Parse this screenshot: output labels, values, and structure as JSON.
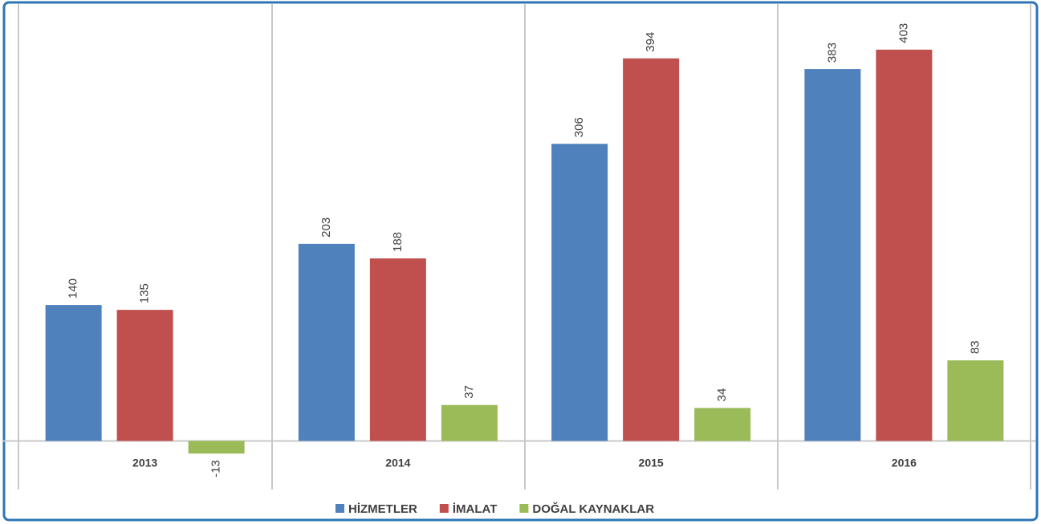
{
  "chart_data": {
    "type": "bar",
    "categories": [
      "2013",
      "2014",
      "2015",
      "2016"
    ],
    "series": [
      {
        "name": "HİZMETLER",
        "color": "#4f81bd",
        "values": [
          140,
          203,
          306,
          383
        ]
      },
      {
        "name": "İMALAT",
        "color": "#c0504d",
        "values": [
          135,
          188,
          394,
          403
        ]
      },
      {
        "name": "DOĞAL KAYNAKLAR",
        "color": "#9bbb59",
        "values": [
          -13,
          37,
          34,
          83
        ]
      }
    ],
    "ylim": [
      -50,
      450
    ],
    "legend": "bottom"
  }
}
